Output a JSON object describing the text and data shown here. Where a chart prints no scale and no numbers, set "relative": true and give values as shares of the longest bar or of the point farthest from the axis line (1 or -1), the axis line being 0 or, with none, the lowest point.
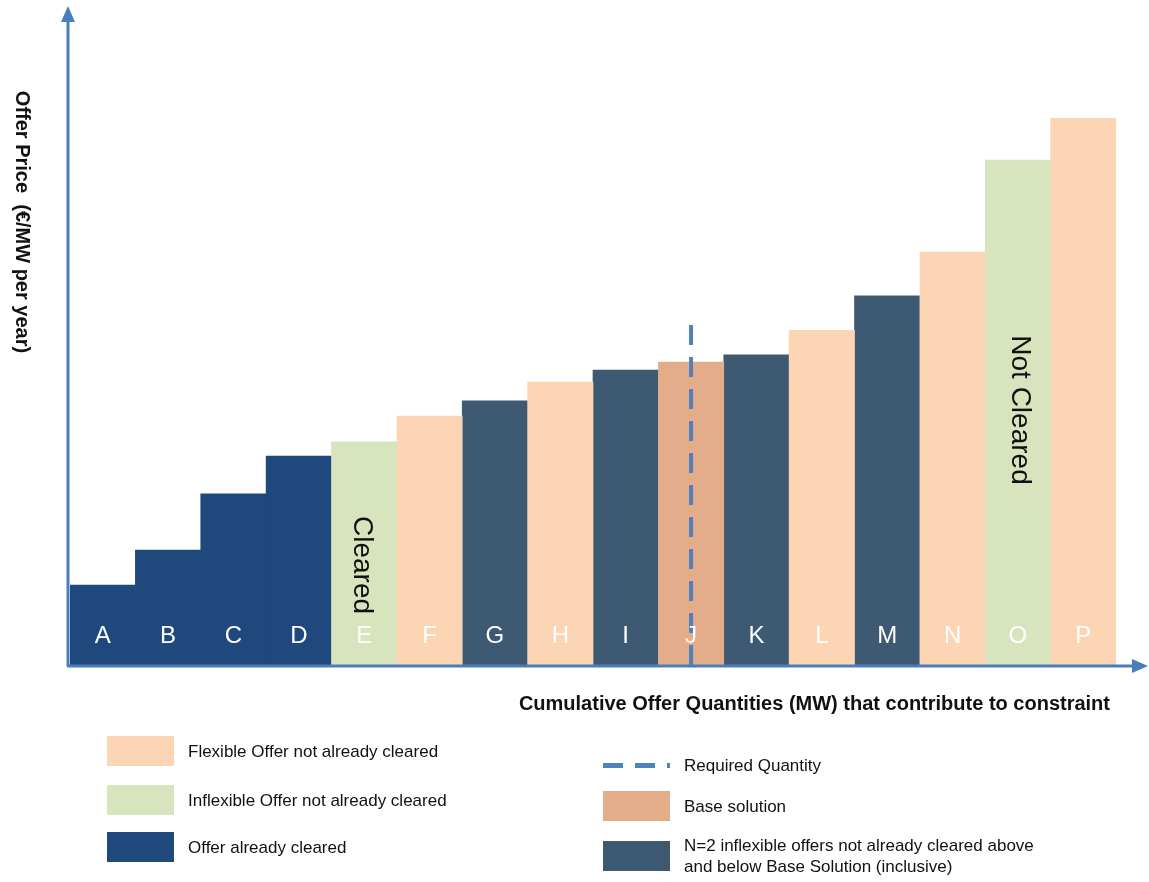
{
  "chart_data": {
    "type": "bar",
    "relative": true,
    "stacked": true,
    "legend": "bottom",
    "xlabel": "Cumulative Offer Quantities (MW) that contribute to constraint",
    "ylabel": "Offer Price  (€/MW per year)",
    "categories": [
      "A",
      "B",
      "C",
      "D",
      "E",
      "F",
      "G",
      "H",
      "I",
      "J",
      "K",
      "L",
      "M",
      "N",
      "O",
      "P"
    ],
    "series": [
      {
        "name": "Flexible Offer not already cleared",
        "color": "#fcd5b4",
        "values": [
          null,
          null,
          null,
          null,
          null,
          0.455,
          null,
          0.517,
          null,
          null,
          null,
          0.612,
          null,
          0.755,
          null,
          1
        ]
      },
      {
        "name": "Inflexible Offer not already cleared",
        "color": "#d7e4bd",
        "values": [
          null,
          null,
          null,
          null,
          0.408,
          null,
          null,
          null,
          null,
          null,
          null,
          null,
          null,
          null,
          0.923,
          null
        ]
      },
      {
        "name": "Offer already cleared",
        "color": "#1f497d",
        "values": [
          0.146,
          0.21,
          0.313,
          0.382,
          null,
          null,
          null,
          null,
          null,
          null,
          null,
          null,
          null,
          null,
          null,
          null
        ]
      },
      {
        "name": "Base solution",
        "color": "#e3ad8a",
        "values": [
          null,
          null,
          null,
          null,
          null,
          null,
          null,
          null,
          null,
          0.554,
          null,
          null,
          null,
          null,
          null,
          null
        ]
      },
      {
        "name": "N=2 inflexible offers not already cleared above and below Base Solution (inclusive)",
        "color": "#3d5a72",
        "values": [
          null,
          null,
          null,
          null,
          null,
          null,
          0.483,
          null,
          0.539,
          null,
          0.567,
          null,
          0.675,
          null,
          null,
          null
        ]
      }
    ],
    "ref_lines": [
      {
        "axis": "x",
        "value": "J",
        "label": "Required Quantity",
        "color": "#4f81bd",
        "line_style": "dashed"
      }
    ],
    "annotations": [
      "Cleared",
      "Not Cleared"
    ]
  }
}
